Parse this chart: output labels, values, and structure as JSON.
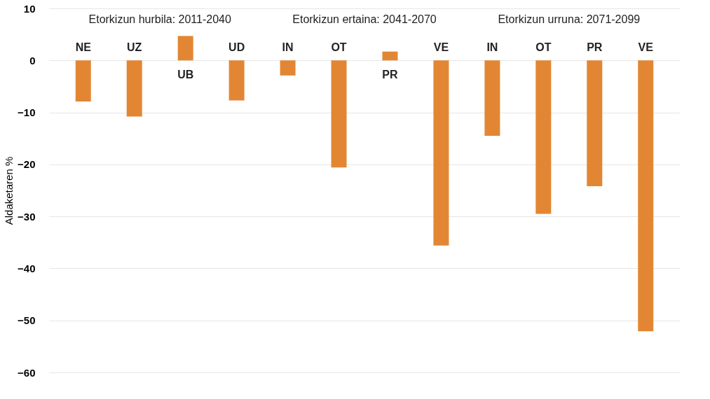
{
  "chart_data": {
    "type": "bar",
    "ylabel": "Aldaketaren %",
    "categories": [
      "NE",
      "UZ",
      "UB",
      "UD",
      "IN",
      "OT",
      "PR",
      "VE",
      "IN",
      "OT",
      "PR",
      "VE"
    ],
    "values": [
      -7.9,
      -10.8,
      4.7,
      -7.7,
      -2.9,
      -20.6,
      1.7,
      -35.6,
      -14.5,
      -29.5,
      -24.2,
      -52.1
    ],
    "color": "#e38633",
    "ylim": [
      -60,
      10
    ],
    "yticks": [
      -60,
      -50,
      -40,
      -30,
      -20,
      -10,
      0,
      10
    ],
    "grid": "y",
    "annotations": [
      "Etorkizun hurbila: 2011-2040",
      "Etorkizun ertaina: 2041-2070",
      "Etorkizun urruna: 2071-2099"
    ]
  }
}
